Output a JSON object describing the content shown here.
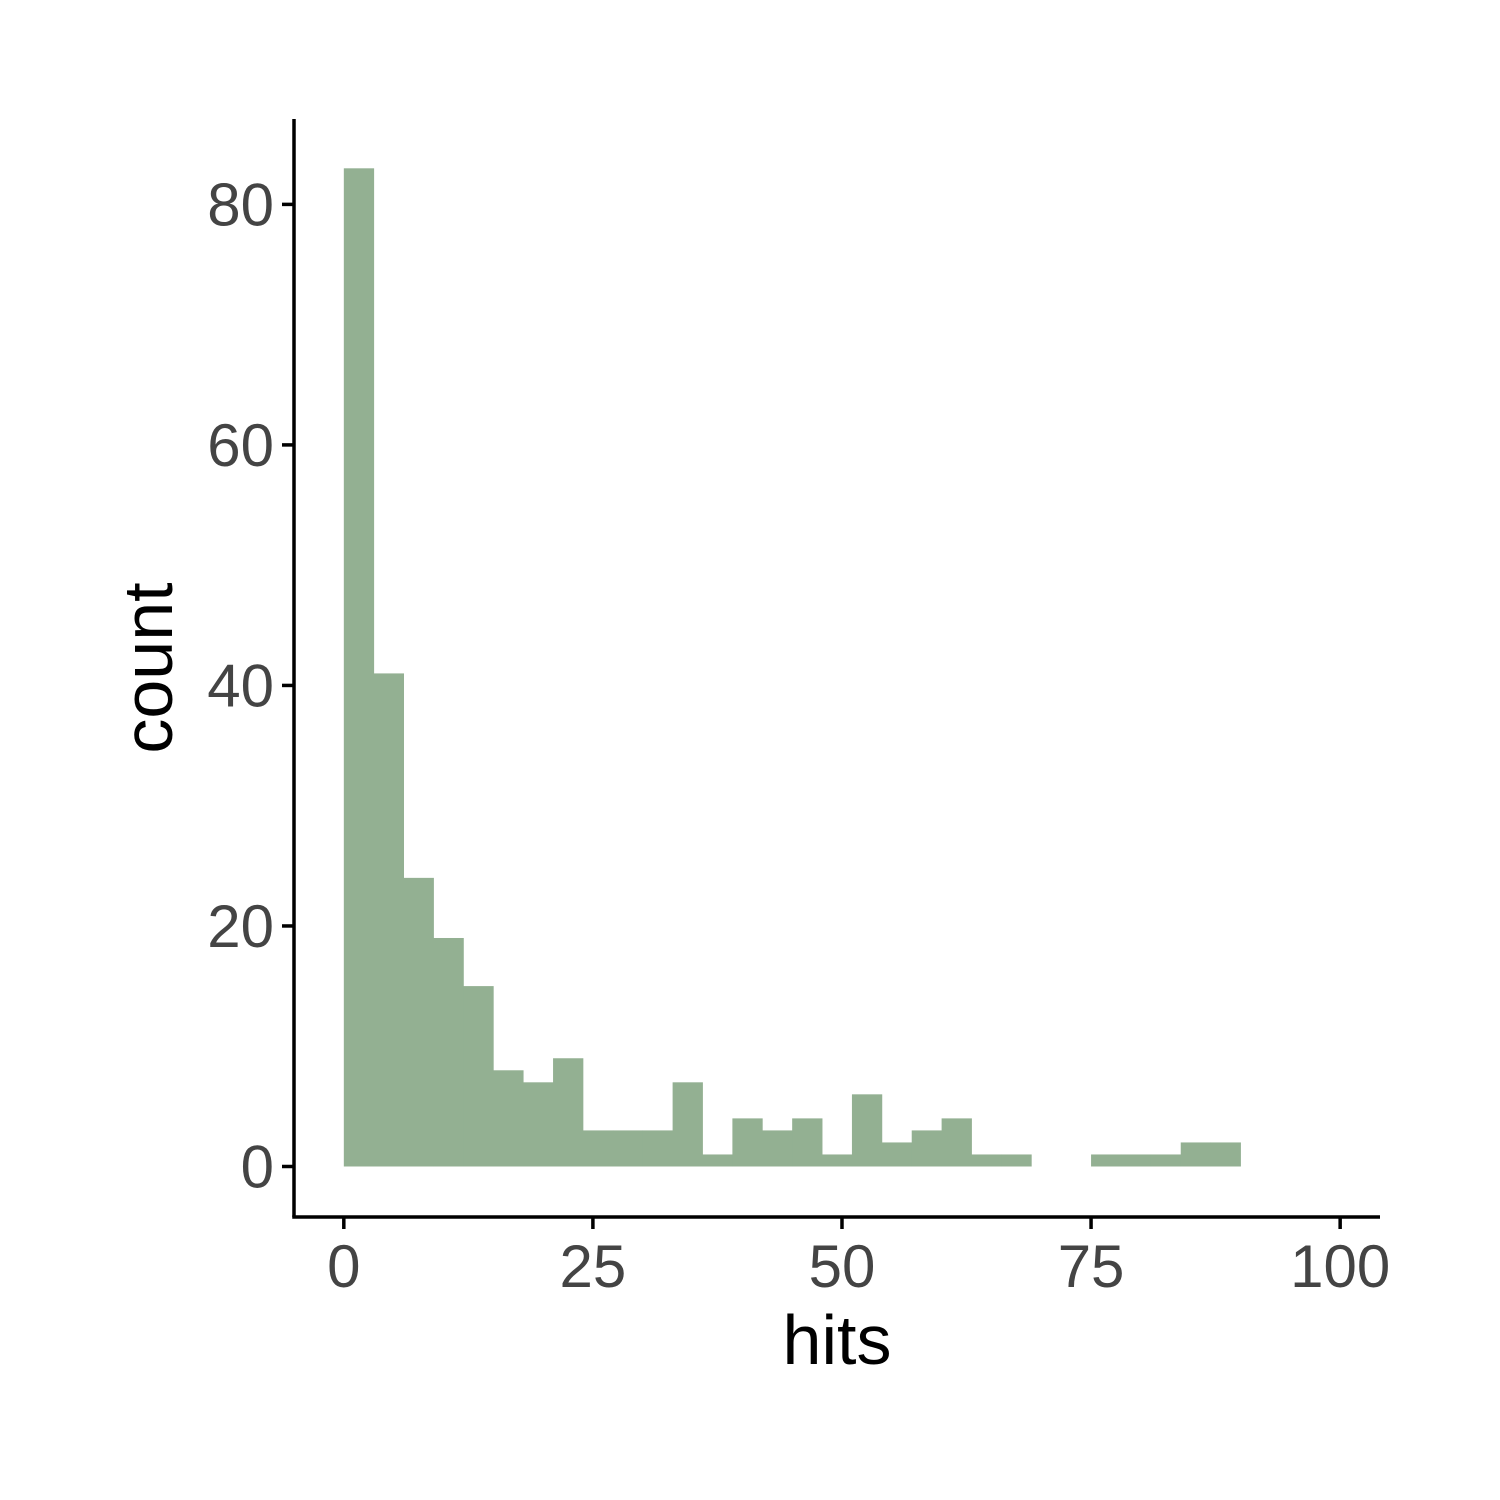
{
  "chart_data": {
    "type": "histogram",
    "xlabel": "hits",
    "ylabel": "count",
    "bin_width": 3,
    "bin_start": 0,
    "bins": [
      {
        "x0": 0,
        "x1": 3,
        "count": 83
      },
      {
        "x0": 3,
        "x1": 6,
        "count": 41
      },
      {
        "x0": 6,
        "x1": 9,
        "count": 24
      },
      {
        "x0": 9,
        "x1": 12,
        "count": 19
      },
      {
        "x0": 12,
        "x1": 15,
        "count": 15
      },
      {
        "x0": 15,
        "x1": 18,
        "count": 8
      },
      {
        "x0": 18,
        "x1": 21,
        "count": 7
      },
      {
        "x0": 21,
        "x1": 24,
        "count": 9
      },
      {
        "x0": 24,
        "x1": 27,
        "count": 3
      },
      {
        "x0": 27,
        "x1": 30,
        "count": 3
      },
      {
        "x0": 30,
        "x1": 33,
        "count": 3
      },
      {
        "x0": 33,
        "x1": 36,
        "count": 7
      },
      {
        "x0": 36,
        "x1": 39,
        "count": 1
      },
      {
        "x0": 39,
        "x1": 42,
        "count": 4
      },
      {
        "x0": 42,
        "x1": 45,
        "count": 3
      },
      {
        "x0": 45,
        "x1": 48,
        "count": 4
      },
      {
        "x0": 48,
        "x1": 51,
        "count": 1
      },
      {
        "x0": 51,
        "x1": 54,
        "count": 6
      },
      {
        "x0": 54,
        "x1": 57,
        "count": 2
      },
      {
        "x0": 57,
        "x1": 60,
        "count": 3
      },
      {
        "x0": 60,
        "x1": 63,
        "count": 4
      },
      {
        "x0": 63,
        "x1": 66,
        "count": 1
      },
      {
        "x0": 66,
        "x1": 69,
        "count": 1
      },
      {
        "x0": 69,
        "x1": 72,
        "count": 0
      },
      {
        "x0": 72,
        "x1": 75,
        "count": 0
      },
      {
        "x0": 75,
        "x1": 78,
        "count": 1
      },
      {
        "x0": 78,
        "x1": 81,
        "count": 1
      },
      {
        "x0": 81,
        "x1": 84,
        "count": 1
      },
      {
        "x0": 84,
        "x1": 87,
        "count": 2
      },
      {
        "x0": 87,
        "x1": 90,
        "count": 2
      }
    ],
    "xlim": [
      -5,
      104
    ],
    "ylim": [
      -4.2,
      87.1
    ],
    "x_ticks": [
      0,
      25,
      50,
      75,
      100
    ],
    "x_tick_labels": [
      "0",
      "25",
      "50",
      "75",
      "100"
    ],
    "y_ticks": [
      0,
      20,
      40,
      60,
      80
    ],
    "y_tick_labels": [
      "0",
      "20",
      "40",
      "60",
      "80"
    ],
    "bar_color": "#93b092",
    "axis_color": "#000000",
    "tick_label_color": "#444444",
    "grid": false,
    "legend": "none"
  }
}
